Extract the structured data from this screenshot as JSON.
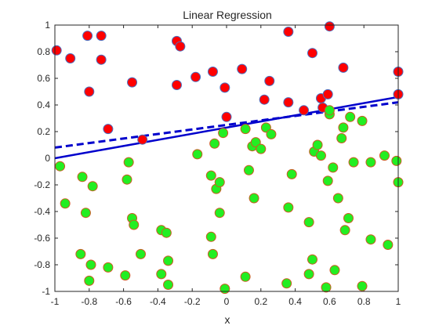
{
  "chart_data": {
    "type": "scatter",
    "title": "Linear Regression",
    "xlabel": "x",
    "ylabel": "",
    "xlim": [
      -1,
      1
    ],
    "ylim": [
      -1,
      1
    ],
    "xticks": [
      "-1",
      "-0.8",
      "-0.6",
      "-0.4",
      "-0.2",
      "0",
      "0.2",
      "0.4",
      "0.6",
      "0.8",
      "1"
    ],
    "yticks": [
      "-1",
      "-0.8",
      "-0.6",
      "-0.4",
      "-0.2",
      "0",
      "0.2",
      "0.4",
      "0.6",
      "0.8",
      "1"
    ],
    "grid": false,
    "colors": {
      "red_fill": "#ff0000",
      "red_edge": "#4a6fc0",
      "green_fill": "#22ee22",
      "green_edge": "#cc5a22",
      "line": "#0000cc",
      "axis": "#262626"
    },
    "series": [
      {
        "marker": "circle",
        "color": "#ff0000",
        "points": [
          [
            -0.99,
            0.81
          ],
          [
            -0.91,
            0.75
          ],
          [
            -0.81,
            0.92
          ],
          [
            -0.73,
            0.92
          ],
          [
            -0.73,
            0.74
          ],
          [
            -0.8,
            0.5
          ],
          [
            -0.69,
            0.22
          ],
          [
            -0.55,
            0.57
          ],
          [
            -0.49,
            0.14
          ],
          [
            -0.29,
            0.88
          ],
          [
            -0.27,
            0.84
          ],
          [
            -0.29,
            0.55
          ],
          [
            -0.18,
            0.61
          ],
          [
            -0.08,
            0.65
          ],
          [
            -0.01,
            0.53
          ],
          [
            0.0,
            0.31
          ],
          [
            0.09,
            0.67
          ],
          [
            0.22,
            0.44
          ],
          [
            0.25,
            0.58
          ],
          [
            0.36,
            0.95
          ],
          [
            0.36,
            0.42
          ],
          [
            0.45,
            0.36
          ],
          [
            0.5,
            0.79
          ],
          [
            0.55,
            0.45
          ],
          [
            0.56,
            0.38
          ],
          [
            0.59,
            0.48
          ],
          [
            0.6,
            0.99
          ],
          [
            0.68,
            0.68
          ],
          [
            1.0,
            0.65
          ],
          [
            1.0,
            0.48
          ]
        ]
      },
      {
        "marker": "circle",
        "color": "#22ee22",
        "points": [
          [
            -0.97,
            -0.06
          ],
          [
            -0.94,
            -0.34
          ],
          [
            -0.84,
            -0.14
          ],
          [
            -0.82,
            -0.41
          ],
          [
            -0.78,
            -0.21
          ],
          [
            -0.85,
            -0.72
          ],
          [
            -0.79,
            -0.8
          ],
          [
            -0.8,
            -0.92
          ],
          [
            -0.69,
            -0.82
          ],
          [
            -0.59,
            -0.88
          ],
          [
            -0.57,
            -0.03
          ],
          [
            -0.58,
            -0.16
          ],
          [
            -0.55,
            -0.45
          ],
          [
            -0.54,
            -0.5
          ],
          [
            -0.5,
            -0.72
          ],
          [
            -0.38,
            -0.54
          ],
          [
            -0.35,
            -0.56
          ],
          [
            -0.34,
            -0.77
          ],
          [
            -0.38,
            -0.87
          ],
          [
            -0.34,
            -0.95
          ],
          [
            -0.17,
            0.03
          ],
          [
            -0.09,
            -0.13
          ],
          [
            -0.07,
            0.11
          ],
          [
            -0.06,
            -0.23
          ],
          [
            -0.04,
            -0.18
          ],
          [
            -0.04,
            -0.41
          ],
          [
            -0.09,
            -0.59
          ],
          [
            -0.08,
            -0.72
          ],
          [
            -0.02,
            0.19
          ],
          [
            -0.01,
            -0.98
          ],
          [
            0.11,
            0.22
          ],
          [
            0.13,
            -0.09
          ],
          [
            0.15,
            0.09
          ],
          [
            0.16,
            -0.3
          ],
          [
            0.17,
            0.12
          ],
          [
            0.2,
            0.07
          ],
          [
            0.23,
            0.23
          ],
          [
            0.26,
            0.18
          ],
          [
            0.11,
            -0.89
          ],
          [
            0.36,
            -0.37
          ],
          [
            0.38,
            -0.12
          ],
          [
            0.35,
            -0.94
          ],
          [
            0.48,
            -0.48
          ],
          [
            0.48,
            -0.87
          ],
          [
            0.51,
            0.05
          ],
          [
            0.53,
            0.1
          ],
          [
            0.5,
            -0.76
          ],
          [
            0.55,
            0.02
          ],
          [
            0.59,
            -0.17
          ],
          [
            0.6,
            0.33
          ],
          [
            0.6,
            0.36
          ],
          [
            0.62,
            -0.07
          ],
          [
            0.63,
            -0.84
          ],
          [
            0.65,
            -0.3
          ],
          [
            0.67,
            0.15
          ],
          [
            0.68,
            0.23
          ],
          [
            0.69,
            -0.54
          ],
          [
            0.71,
            -0.45
          ],
          [
            0.72,
            0.31
          ],
          [
            0.74,
            -0.03
          ],
          [
            0.58,
            -0.97
          ],
          [
            0.79,
            0.28
          ],
          [
            0.79,
            -0.96
          ],
          [
            0.84,
            -0.03
          ],
          [
            0.84,
            -0.61
          ],
          [
            0.92,
            0.02
          ],
          [
            0.94,
            -0.65
          ],
          [
            0.99,
            -0.02
          ],
          [
            1.0,
            -0.18
          ]
        ]
      },
      {
        "style": "solid",
        "color": "#0000cc",
        "points": [
          [
            -1,
            0.0
          ],
          [
            1,
            0.46
          ]
        ]
      },
      {
        "style": "dashed",
        "color": "#0000cc",
        "points": [
          [
            -1,
            0.08
          ],
          [
            1,
            0.42
          ]
        ]
      }
    ]
  }
}
